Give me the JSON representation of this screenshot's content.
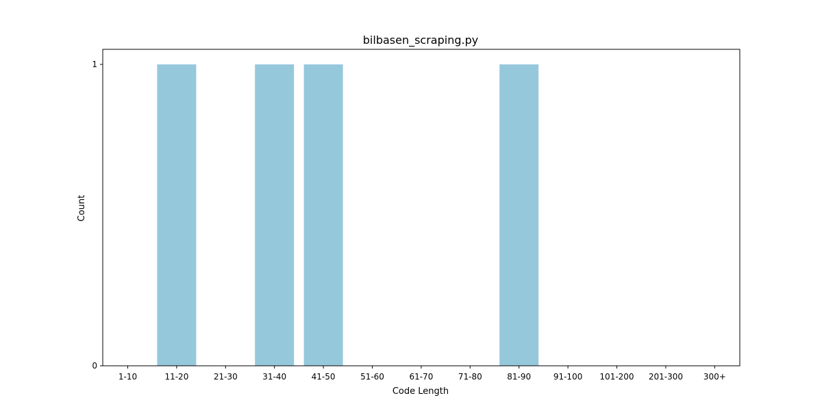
{
  "chart_data": {
    "type": "bar",
    "title": "bilbasen_scraping.py",
    "xlabel": "Code Length",
    "ylabel": "Count",
    "categories": [
      "1-10",
      "11-20",
      "21-30",
      "31-40",
      "41-50",
      "51-60",
      "61-70",
      "71-80",
      "81-90",
      "91-100",
      "101-200",
      "201-300",
      "300+"
    ],
    "values": [
      0,
      1,
      0,
      1,
      1,
      0,
      0,
      0,
      1,
      0,
      0,
      0,
      0
    ],
    "ylim": [
      0,
      1
    ],
    "yticks": [
      0,
      1
    ],
    "bar_color": "#96c8dc",
    "grid": false,
    "legend": "none"
  }
}
